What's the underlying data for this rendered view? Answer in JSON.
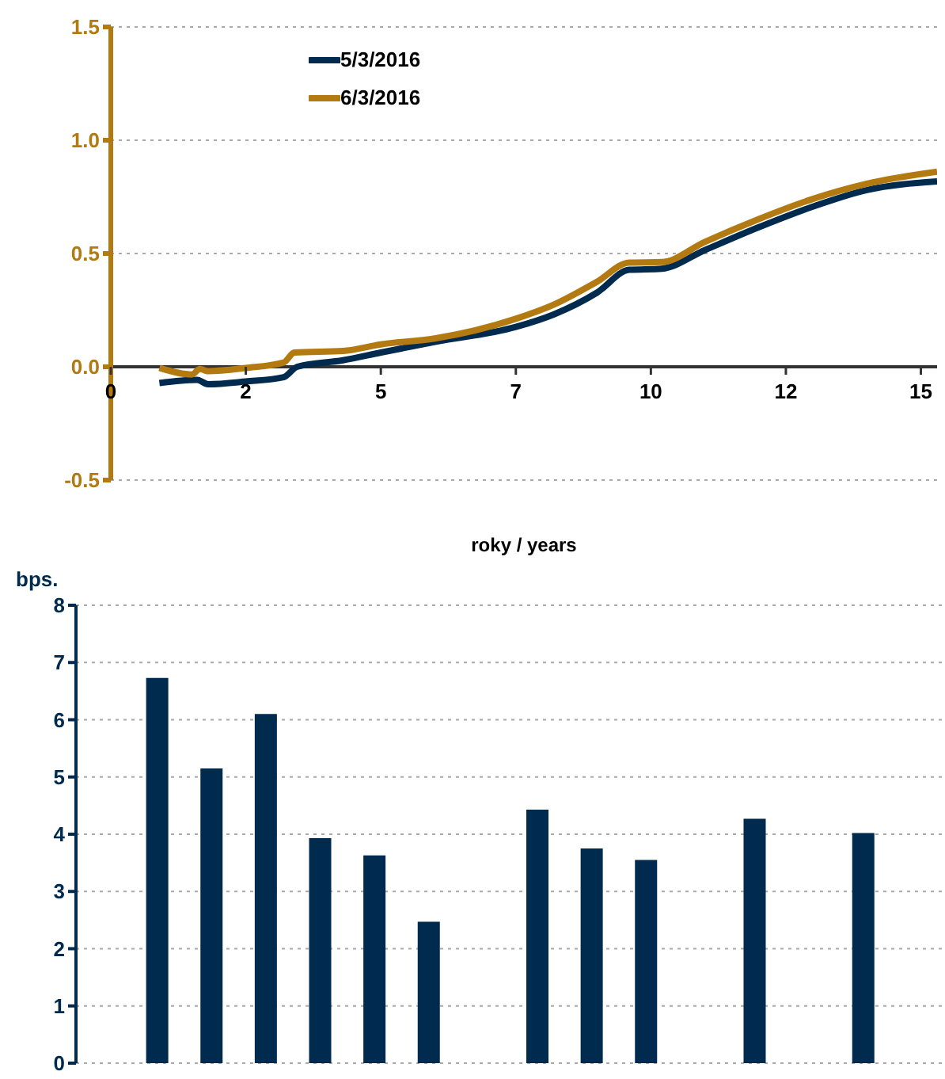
{
  "chart_data": [
    {
      "type": "line",
      "xlabel": "roky / years",
      "xlim": [
        0,
        15.3
      ],
      "xticks": [
        0,
        {
          "value": 2.5,
          "label": "2"
        },
        5,
        {
          "value": 7.5,
          "label": "7"
        },
        10,
        {
          "value": 12.5,
          "label": "12"
        },
        15
      ],
      "ylim": [
        -0.5,
        1.5
      ],
      "yticks": [
        -0.5,
        {
          "value": 0,
          "label": "0.0"
        },
        0.5,
        {
          "value": 1,
          "label": "1.0"
        },
        1.5
      ],
      "grid": "y",
      "legend": "top left",
      "line_style": "solid",
      "marker": "none",
      "series": [
        {
          "name": "5/3/2016",
          "color": "#002a4e",
          "x": [
            0.9,
            1.6,
            1.8,
            2.5,
            3.2,
            3.45,
            4.3,
            5,
            6,
            7.5,
            8.2,
            9,
            9.6,
            10.2,
            11,
            12,
            13,
            14,
            15.3
          ],
          "values": [
            -0.072,
            -0.058,
            -0.077,
            -0.065,
            -0.046,
            0,
            0.029,
            0.063,
            0.11,
            0.176,
            0.231,
            0.327,
            0.428,
            0.433,
            0.515,
            0.616,
            0.707,
            0.78,
            0.818
          ]
        },
        {
          "name": "6/3/2016",
          "color": "#b37a12",
          "x": [
            0.9,
            1.5,
            1.65,
            1.8,
            2.5,
            3.2,
            3.4,
            4.3,
            5,
            6,
            7.5,
            8.2,
            9,
            9.6,
            10.2,
            11,
            12,
            13,
            14,
            15.3
          ],
          "values": [
            -0.005,
            -0.034,
            -0.01,
            -0.019,
            -0.005,
            0.019,
            0.063,
            0.07,
            0.099,
            0.125,
            0.212,
            0.274,
            0.375,
            0.46,
            0.462,
            0.551,
            0.652,
            0.741,
            0.808,
            0.861
          ]
        }
      ]
    },
    {
      "type": "bar",
      "ylabel": "bps.",
      "categories": [
        null,
        null,
        null,
        null,
        null,
        null,
        null,
        null,
        null,
        null,
        null,
        null,
        null,
        null,
        null,
        null
      ],
      "values": [
        null,
        6.73,
        5.15,
        6.1,
        3.93,
        3.63,
        2.47,
        null,
        4.43,
        3.75,
        3.55,
        null,
        4.27,
        null,
        4.02,
        null
      ],
      "color": "#002a4e",
      "ylim": [
        0,
        8
      ],
      "yticks": [
        0,
        1,
        2,
        3,
        4,
        5,
        6,
        7,
        8
      ],
      "grid": "y",
      "tick_labels": "y"
    }
  ]
}
